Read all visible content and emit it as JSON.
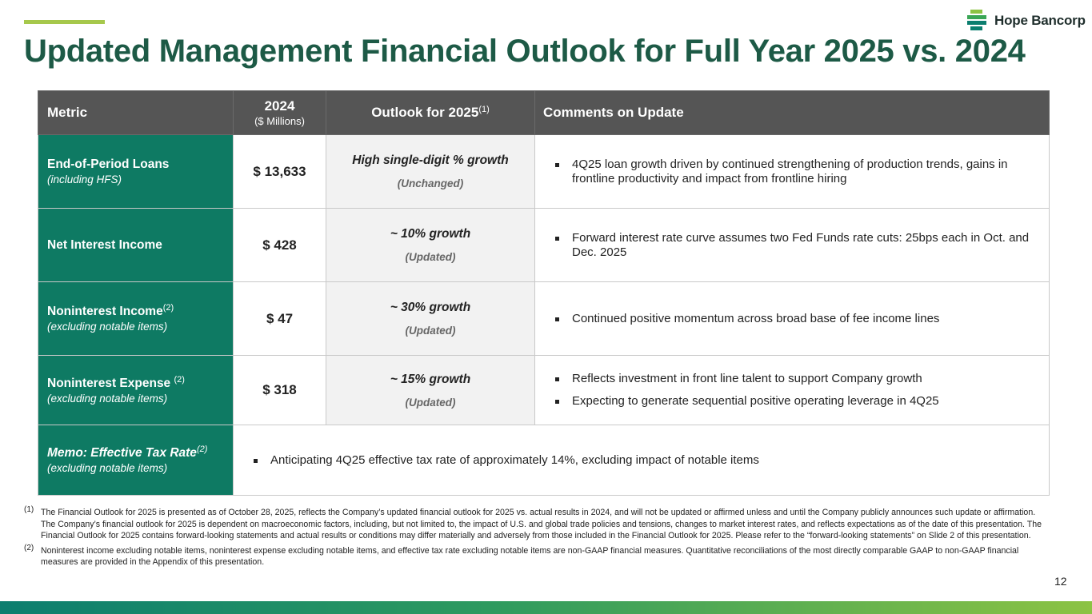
{
  "header": {
    "title": "Updated Management Financial Outlook for Full Year 2025 vs. 2024",
    "logo_text": "Hope Bancorp"
  },
  "colors": {
    "accent_line": "#a6c84c",
    "title": "#1d5a46",
    "metric_cell": "#0e7a63",
    "header_row": "#555555",
    "outlook_cell": "#f2f2f2"
  },
  "table": {
    "headers": {
      "metric": "Metric",
      "year": "2024",
      "year_unit": "($ Millions)",
      "outlook": "Outlook for 2025",
      "outlook_sup": "(1)",
      "comments": "Comments on Update"
    },
    "rows": [
      {
        "metric": "End-of-Period Loans",
        "metric_sup": "",
        "note": "(including HFS)",
        "value": "$ 13,633",
        "outlook": "High single-digit % growth",
        "status": "(Unchanged)",
        "comments": [
          "4Q25 loan growth driven by continued strengthening of production trends, gains in frontline productivity and impact from frontline hiring"
        ]
      },
      {
        "metric": "Net Interest Income",
        "metric_sup": "",
        "note": "",
        "value": "$ 428",
        "outlook": "~ 10% growth",
        "status": "(Updated)",
        "comments": [
          "Forward interest rate curve assumes two Fed Funds rate cuts: 25bps each in Oct. and Dec. 2025"
        ]
      },
      {
        "metric": "Noninterest Income",
        "metric_sup": "(2)",
        "note": "(excluding notable items)",
        "value": "$ 47",
        "outlook": "~ 30% growth",
        "status": "(Updated)",
        "comments": [
          "Continued positive momentum across broad base of fee income lines"
        ]
      },
      {
        "metric": "Noninterest Expense",
        "metric_sup": "(2)",
        "note": "(excluding notable items)",
        "value": "$ 318",
        "outlook": "~ 15% growth",
        "status": "(Updated)",
        "comments": [
          "Reflects investment in front line talent to support Company growth",
          "Expecting to generate sequential positive operating leverage in 4Q25"
        ]
      }
    ],
    "memo": {
      "metric": "Memo: Effective Tax Rate",
      "metric_sup": "(2)",
      "note": "(excluding notable items)",
      "comment": "Anticipating 4Q25 effective tax rate of approximately 14%, excluding impact of notable items"
    }
  },
  "footnotes": [
    {
      "mark": "(1)",
      "text": "The Financial Outlook for 2025 is presented as of October 28, 2025, reflects the Company’s updated financial outlook for 2025 vs. actual results in 2024, and will not be updated or affirmed unless and until the Company publicly announces such update or affirmation. The Company’s financial outlook for 2025 is dependent on macroeconomic factors, including, but not limited to, the impact of U.S. and global trade policies and tensions, changes to market interest rates, and reflects expectations as of the date of this presentation. The Financial Outlook for 2025 contains forward-looking statements and actual results or conditions may differ materially and adversely from those included in the Financial Outlook for 2025. Please refer to the “forward-looking statements” on Slide 2 of this presentation."
    },
    {
      "mark": "(2)",
      "text": "Noninterest income excluding notable items, noninterest expense excluding notable items, and effective tax rate excluding notable items are non-GAAP financial measures. Quantitative reconciliations of the most directly comparable GAAP to non-GAAP financial measures are provided in the Appendix of this presentation."
    }
  ],
  "page_number": "12"
}
